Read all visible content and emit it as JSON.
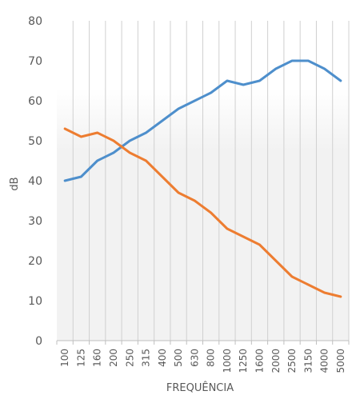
{
  "chart_data": {
    "type": "line",
    "xlabel": "FREQUÊNCIA",
    "ylabel": "dB",
    "ylim": [
      0,
      80
    ],
    "y_ticks": [
      "0",
      "10",
      "20",
      "30",
      "40",
      "50",
      "60",
      "70",
      "80"
    ],
    "categories": [
      "100",
      "125",
      "160",
      "200",
      "250",
      "315",
      "400",
      "500",
      "630",
      "800",
      "1000",
      "1250",
      "1600",
      "2000",
      "2500",
      "3150",
      "4000",
      "5000"
    ],
    "grid": "vertical",
    "series": [
      {
        "color": "#4e8fcc",
        "values": [
          40,
          41,
          45,
          47,
          50,
          52,
          55,
          58,
          60,
          62,
          65,
          64,
          65,
          68,
          70,
          70,
          68,
          65
        ]
      },
      {
        "color": "#ed7d31",
        "values": [
          53,
          51,
          52,
          50,
          47,
          45,
          41,
          37,
          35,
          32,
          28,
          26,
          24,
          20,
          16,
          14,
          12,
          11
        ]
      }
    ]
  }
}
